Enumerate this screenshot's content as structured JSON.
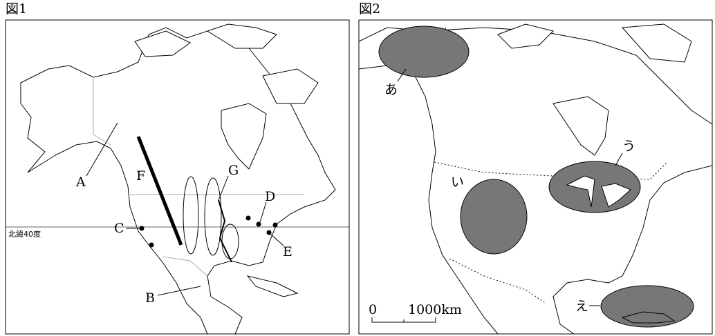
{
  "figure1": {
    "title": "図1",
    "latitude_label": "北緯40度",
    "labels": {
      "A": "A",
      "B": "B",
      "C": "C",
      "D": "D",
      "E": "E",
      "F": "F",
      "G": "G"
    }
  },
  "figure2": {
    "title": "図2",
    "labels": {
      "a": "あ",
      "i": "い",
      "u": "う",
      "e": "え"
    },
    "scale": {
      "zero": "0",
      "distance": "1000km"
    }
  }
}
